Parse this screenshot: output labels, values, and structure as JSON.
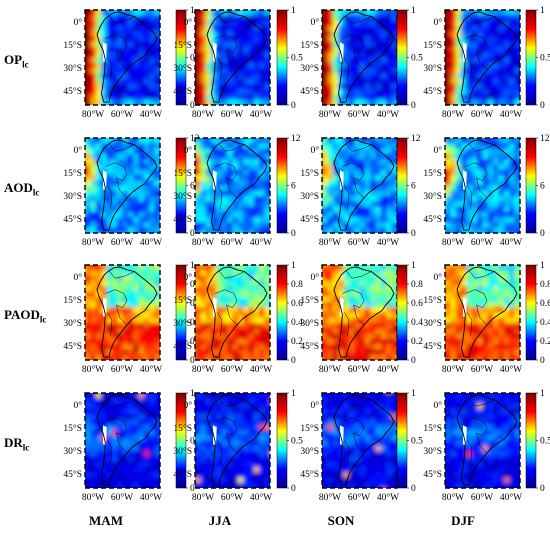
{
  "rows": [
    {
      "label_main": "OP",
      "label_sub": "lc",
      "cbar_ticks": [
        "1",
        "0.5",
        "0"
      ],
      "tick_positions": [
        1,
        0.5,
        0
      ]
    },
    {
      "label_main": "AOD",
      "label_sub": "lc",
      "cbar_ticks": [
        "12",
        "6",
        "0"
      ],
      "tick_positions": [
        1,
        0.5,
        0
      ]
    },
    {
      "label_main": "PAOD",
      "label_sub": "lc",
      "cbar_ticks": [
        "1",
        "0.8",
        "0.6",
        "0.4",
        "0.2",
        "0"
      ],
      "tick_positions": [
        1,
        0.8,
        0.6,
        0.4,
        0.2,
        0
      ]
    },
    {
      "label_main": "DR",
      "label_sub": "lc",
      "cbar_ticks": [
        "1",
        "0.5",
        "0"
      ],
      "tick_positions": [
        1,
        0.5,
        0
      ]
    }
  ],
  "columns": [
    "MAM",
    "JJA",
    "SON",
    "DJF"
  ],
  "lat_ticks": [
    "0°",
    "15°S",
    "30°S",
    "45°S"
  ],
  "lon_ticks": [
    "80°W",
    "60°W",
    "40°W"
  ],
  "colorbar_colors": [
    "#00008f",
    "#0000ff",
    "#00ffff",
    "#ffff00",
    "#ff0000",
    "#800000"
  ]
}
